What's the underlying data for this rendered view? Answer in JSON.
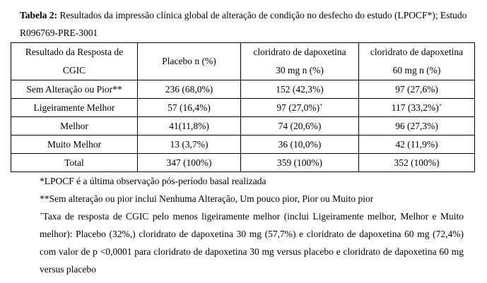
{
  "caption": {
    "label": "Tabela 2:",
    "text": " Resultados da impressão clínica global de alteração de condição no desfecho do estudo (LPOCF*); Estudo R096769-PRE-3001"
  },
  "table": {
    "headers": [
      {
        "line1": "Resultado da Resposta de",
        "line2": "CGIC"
      },
      {
        "line1": "Placebo n (%)",
        "line2": ""
      },
      {
        "line1": "cloridrato de dapoxetina",
        "line2": "30 mg n (%)"
      },
      {
        "line1": "cloridrato de dapoxetina",
        "line2": "60 mg n (%)"
      }
    ],
    "rows": [
      {
        "label": "Sem Alteração ou Pior**",
        "c1": "236 (68,0%)",
        "c2": "152 (42,3%)",
        "c2_sup": "",
        "c3": "97 (27,6%)",
        "c3_sup": ""
      },
      {
        "label": "Ligeiramente Melhor",
        "c1": "57 (16,4%)",
        "c2": "97 (27,0%)",
        "c2_sup": "+",
        "c3": "117 (33,2%)",
        "c3_sup": "+"
      },
      {
        "label": "Melhor",
        "c1": "41(11,8%)",
        "c2": "74 (20,6%)",
        "c2_sup": "",
        "c3": "96 (27,3%)",
        "c3_sup": ""
      },
      {
        "label": "Muito Melhor",
        "c1": "13 (3,7%)",
        "c2": "36 (10,0%)",
        "c2_sup": "",
        "c3": "42 (11,9%)",
        "c3_sup": ""
      },
      {
        "label": "Total",
        "c1": "347 (100%)",
        "c2": "359 (100%)",
        "c2_sup": "",
        "c3": "352 (100%)",
        "c3_sup": ""
      }
    ]
  },
  "notes": {
    "n1": "*LPOCF é a última observação pós-período basal realizada",
    "n2": "**Sem alteração ou pior inclui Nenhuma Alteração, Um pouco pior, Pior ou Muito pior",
    "n3_mark": "+",
    "n3": "Taxa de resposta de CGIC pelo menos ligeiramente melhor (inclui Ligeiramente melhor, Melhor e Muito melhor): Placebo (32%,) cloridrato de dapoxetina 30 mg (57,7%) e cloridrato de dapoxetina 60 mg (72,4%) com valor de p <0,0001 para cloridrato de dapoxetina 30 mg versus placebo e cloridrato de dapoxetina 60 mg versus placebo"
  }
}
